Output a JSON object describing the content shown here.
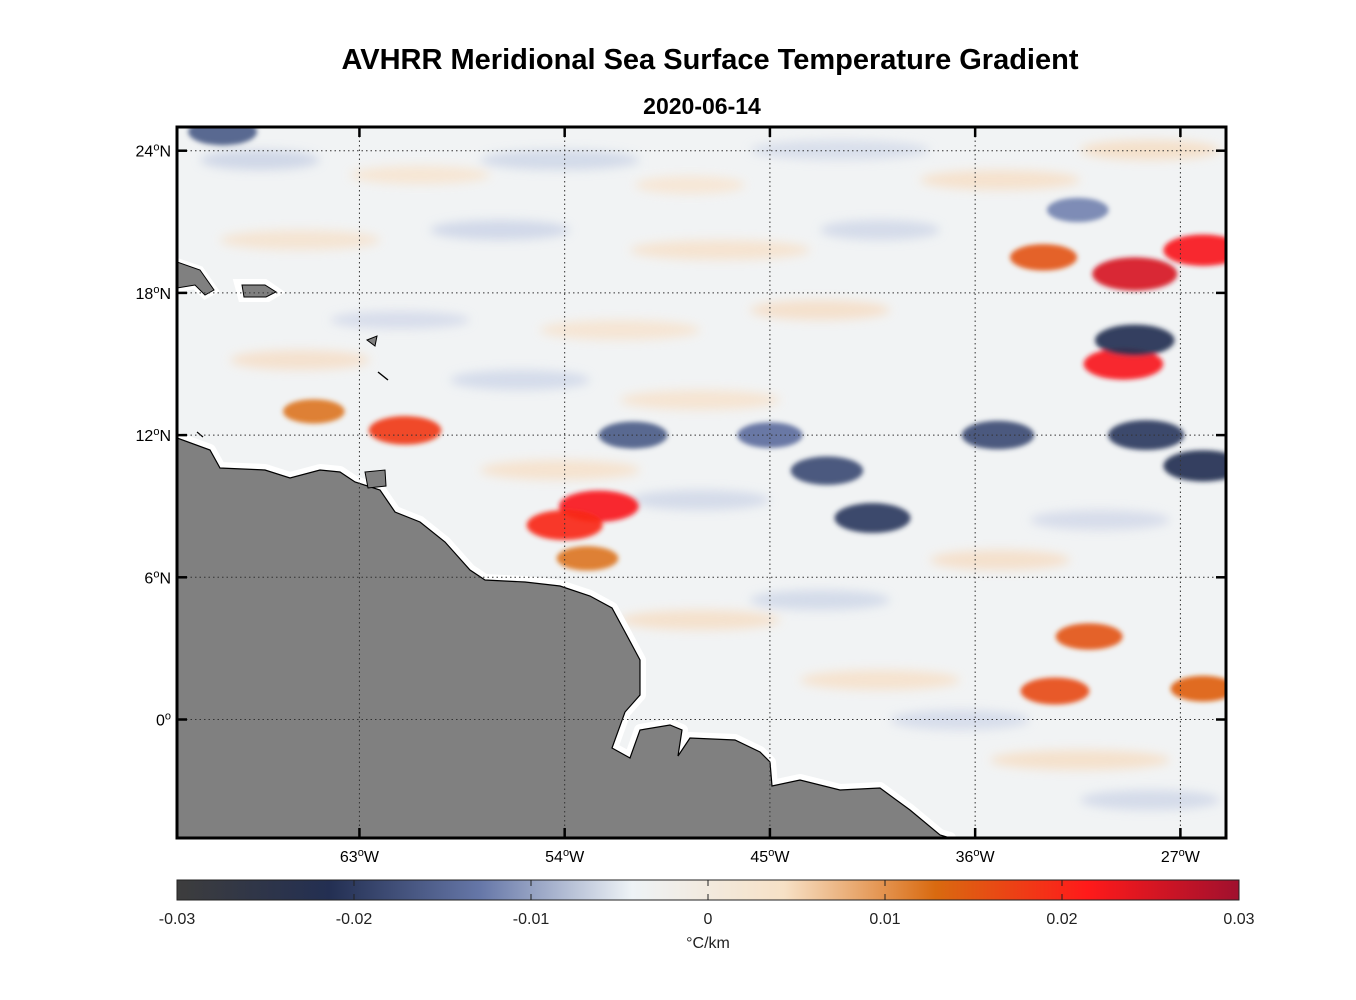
{
  "title": "AVHRR Meridional Sea Surface Temperature Gradient",
  "subtitle": "2020-06-14",
  "colors": {
    "land": "#808080",
    "coast_mask": "#ffffff",
    "frame": "#000000",
    "grid": "#333333"
  },
  "chart_data": {
    "type": "heatmap",
    "title": "AVHRR Meridional Sea Surface Temperature Gradient",
    "subtitle": "2020-06-14",
    "x_range_lon": [
      -71,
      -25
    ],
    "y_range_lat": [
      -5,
      25
    ],
    "x_ticks": [
      {
        "value": -63,
        "label": "63",
        "hemi": "W"
      },
      {
        "value": -54,
        "label": "54",
        "hemi": "W"
      },
      {
        "value": -45,
        "label": "45",
        "hemi": "W"
      },
      {
        "value": -36,
        "label": "36",
        "hemi": "W"
      },
      {
        "value": -27,
        "label": "27",
        "hemi": "W"
      }
    ],
    "y_ticks": [
      {
        "value": 24,
        "label": "24",
        "hemi": "N"
      },
      {
        "value": 18,
        "label": "18",
        "hemi": "N"
      },
      {
        "value": 12,
        "label": "12",
        "hemi": "N"
      },
      {
        "value": 6,
        "label": "6",
        "hemi": "N"
      },
      {
        "value": 0,
        "label": "0",
        "hemi": ""
      }
    ],
    "grid": true,
    "colorbar": {
      "min": -0.03,
      "max": 0.03,
      "ticks": [
        "-0.03",
        "-0.02",
        "-0.01",
        "0",
        "0.01",
        "0.02",
        "0.03"
      ],
      "label": "°C/km",
      "stops": [
        "#3d3d3d",
        "#232f52",
        "#6677a8",
        "#eef3f6",
        "#f7e1c6",
        "#d96a10",
        "#ff1a1a",
        "#a0102e"
      ]
    },
    "features": [
      {
        "lon": -61.0,
        "lat": 12.2,
        "value": 0.018,
        "note": "positive"
      },
      {
        "lon": -65.0,
        "lat": 13.0,
        "value": 0.012
      },
      {
        "lon": -52.5,
        "lat": 9.0,
        "value": 0.022
      },
      {
        "lon": -54.0,
        "lat": 8.2,
        "value": 0.02
      },
      {
        "lon": -53.0,
        "lat": 6.8,
        "value": 0.012
      },
      {
        "lon": -29.0,
        "lat": 18.8,
        "value": 0.025
      },
      {
        "lon": -29.5,
        "lat": 15.0,
        "value": 0.022
      },
      {
        "lon": -26.0,
        "lat": 19.8,
        "value": 0.022
      },
      {
        "lon": -33.0,
        "lat": 19.5,
        "value": 0.015
      },
      {
        "lon": -31.0,
        "lat": 3.5,
        "value": 0.015
      },
      {
        "lon": -32.5,
        "lat": 1.2,
        "value": 0.016
      },
      {
        "lon": -26.0,
        "lat": 1.3,
        "value": 0.014
      },
      {
        "lon": -29.0,
        "lat": 16.0,
        "value": -0.022
      },
      {
        "lon": -28.5,
        "lat": 12.0,
        "value": -0.02
      },
      {
        "lon": -26.0,
        "lat": 10.7,
        "value": -0.022
      },
      {
        "lon": -40.5,
        "lat": 8.5,
        "value": -0.02
      },
      {
        "lon": -42.5,
        "lat": 10.5,
        "value": -0.018
      },
      {
        "lon": -35.0,
        "lat": 12.0,
        "value": -0.018
      },
      {
        "lon": -51.0,
        "lat": 12.0,
        "value": -0.016
      },
      {
        "lon": -45.0,
        "lat": 12.0,
        "value": -0.014
      },
      {
        "lon": -69.0,
        "lat": 24.8,
        "value": -0.016
      },
      {
        "lon": -31.5,
        "lat": 21.5,
        "value": -0.012
      }
    ]
  }
}
